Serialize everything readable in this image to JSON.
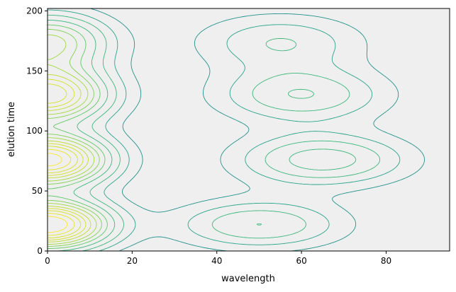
{
  "chart_data": {
    "type": "contour",
    "title": "",
    "xlabel": "wavelength",
    "ylabel": "elution time",
    "xlim": [
      0,
      95
    ],
    "ylim": [
      0,
      202
    ],
    "x_ticks": [
      0,
      20,
      40,
      60,
      80
    ],
    "y_ticks": [
      0,
      50,
      100,
      150,
      200
    ],
    "background": "#efefef",
    "colormap": "viridis",
    "grid": false,
    "peaks": [
      {
        "elution_time": 22,
        "peaks": [
          {
            "wavelength": 0,
            "relative_intensity": 1.0
          },
          {
            "wavelength": 50,
            "relative_intensity": 0.3
          }
        ]
      },
      {
        "elution_time": 76,
        "peaks": [
          {
            "wavelength": 0,
            "relative_intensity": 0.95
          },
          {
            "wavelength": 65,
            "relative_intensity": 0.35
          }
        ]
      },
      {
        "elution_time": 130,
        "peaks": [
          {
            "wavelength": 0,
            "relative_intensity": 0.8
          },
          {
            "wavelength": 60,
            "relative_intensity": 0.3
          }
        ]
      },
      {
        "elution_time": 174,
        "peaks": [
          {
            "wavelength": 0,
            "relative_intensity": 0.55
          },
          {
            "wavelength": 55,
            "relative_intensity": 0.22
          }
        ]
      }
    ],
    "contour_levels": [
      0.08,
      0.15,
      0.22,
      0.3,
      0.38,
      0.45,
      0.52,
      0.6,
      0.67,
      0.74,
      0.82,
      0.9
    ]
  }
}
